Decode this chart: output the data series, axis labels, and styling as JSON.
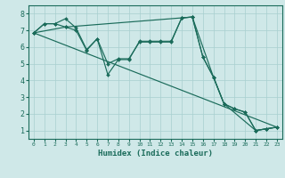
{
  "xlabel": "Humidex (Indice chaleur)",
  "background_color": "#cfe8e8",
  "grid_color": "#a8cfcf",
  "line_color": "#1a6b5a",
  "xlim": [
    -0.5,
    23.5
  ],
  "ylim": [
    0.5,
    8.5
  ],
  "xticks": [
    0,
    1,
    2,
    3,
    4,
    5,
    6,
    7,
    8,
    9,
    10,
    11,
    12,
    13,
    14,
    15,
    16,
    17,
    18,
    19,
    20,
    21,
    22,
    23
  ],
  "yticks": [
    1,
    2,
    3,
    4,
    5,
    6,
    7,
    8
  ],
  "line1_x": [
    0,
    1,
    2,
    3,
    4,
    5,
    6,
    7,
    8,
    9,
    10,
    11,
    12,
    13,
    14,
    15,
    16,
    17,
    18,
    19,
    20,
    21,
    22,
    23
  ],
  "line1_y": [
    6.85,
    7.4,
    7.4,
    7.7,
    7.15,
    5.85,
    6.5,
    4.35,
    5.25,
    5.25,
    6.35,
    6.35,
    6.35,
    6.35,
    7.75,
    7.8,
    5.4,
    4.2,
    2.6,
    2.3,
    2.1,
    1.0,
    1.1,
    1.2
  ],
  "line2_x": [
    0,
    1,
    2,
    3,
    4,
    5,
    6,
    7,
    8,
    9,
    10,
    11,
    12,
    13,
    14,
    15,
    16,
    17,
    18,
    19,
    20,
    21,
    22,
    23
  ],
  "line2_y": [
    6.85,
    7.4,
    7.4,
    7.2,
    7.0,
    5.8,
    6.5,
    5.0,
    5.3,
    5.3,
    6.3,
    6.3,
    6.3,
    6.3,
    7.75,
    7.8,
    5.4,
    4.2,
    2.6,
    2.3,
    2.1,
    1.0,
    1.1,
    1.2
  ],
  "line3_x": [
    0,
    3,
    14,
    15,
    17,
    18,
    21,
    22,
    23
  ],
  "line3_y": [
    6.85,
    7.2,
    7.75,
    7.8,
    4.2,
    2.6,
    1.0,
    1.1,
    1.2
  ]
}
